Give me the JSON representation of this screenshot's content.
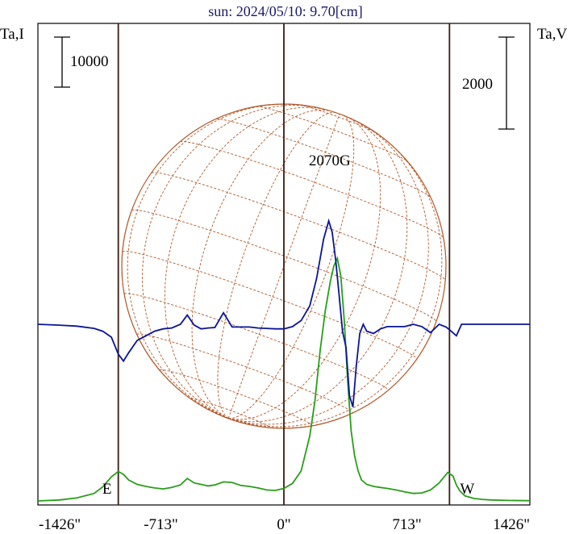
{
  "chart_data": {
    "type": "line",
    "title": "sun: 2024/05/10: 9.70[cm]",
    "left_axis_label": "Ta,I",
    "right_axis_label": "Ta,V",
    "x_tick_labels": [
      "-1426\"",
      "-713\"",
      "0\"",
      "713\"",
      "1426\""
    ],
    "x_ticks": [
      -1426,
      -713,
      0,
      713,
      1426
    ],
    "xlim": [
      -1426,
      1426
    ],
    "limb_lines_x": [
      -960,
      0,
      960
    ],
    "limb_labels": {
      "east": "E",
      "west": "W"
    },
    "scale_bar_left_label": "10000",
    "scale_bar_left_value": 10000,
    "scale_bar_right_label": "2000",
    "scale_bar_right_value": 2000,
    "annotation": {
      "text": "2070G",
      "x": 285
    },
    "colors": {
      "intensity": "#2a9d1a",
      "polarization": "#0a1496",
      "limb_lines": "#3a1a10",
      "solar_grid": "#b05a2a",
      "frame": "#000000",
      "title": "#1a1a6a"
    },
    "series": [
      {
        "id": "intensity",
        "axis": "left",
        "color": "#2a9d1a",
        "x": [
          -1426,
          -1300,
          -1200,
          -1100,
          -1050,
          -1000,
          -960,
          -930,
          -900,
          -850,
          -800,
          -750,
          -700,
          -650,
          -600,
          -560,
          -520,
          -480,
          -440,
          -400,
          -350,
          -300,
          -250,
          -200,
          -150,
          -100,
          -50,
          0,
          50,
          100,
          150,
          180,
          210,
          240,
          270,
          290,
          310,
          330,
          350,
          370,
          390,
          410,
          430,
          450,
          480,
          520,
          560,
          600,
          650,
          700,
          750,
          800,
          850,
          900,
          950,
          980,
          1000,
          1020,
          1050,
          1100,
          1150,
          1200,
          1300,
          1426
        ],
        "y": [
          0,
          200,
          600,
          1500,
          2800,
          4800,
          5900,
          5300,
          4200,
          3300,
          2900,
          2600,
          2400,
          2700,
          3200,
          4500,
          3600,
          3300,
          3000,
          3200,
          3800,
          3700,
          3100,
          2900,
          2600,
          2200,
          2100,
          2500,
          3500,
          6000,
          13000,
          20000,
          30000,
          38000,
          44000,
          47000,
          48500,
          45000,
          36000,
          24000,
          14000,
          9000,
          6000,
          4200,
          3300,
          2900,
          2700,
          2500,
          2200,
          1800,
          1500,
          1600,
          2200,
          3600,
          5700,
          5000,
          3200,
          2000,
          1000,
          500,
          300,
          200,
          100,
          50
        ]
      },
      {
        "id": "polarization",
        "axis": "right",
        "color": "#0a1496",
        "x": [
          -1426,
          -1300,
          -1200,
          -1100,
          -1050,
          -1000,
          -960,
          -930,
          -900,
          -850,
          -800,
          -750,
          -700,
          -650,
          -600,
          -560,
          -520,
          -480,
          -440,
          -400,
          -350,
          -300,
          -250,
          -200,
          -150,
          -100,
          -50,
          0,
          50,
          100,
          150,
          190,
          230,
          260,
          280,
          300,
          320,
          340,
          360,
          380,
          400,
          420,
          440,
          460,
          480,
          520,
          560,
          600,
          650,
          700,
          750,
          800,
          850,
          900,
          940,
          970,
          1000,
          1030,
          1080,
          1150,
          1250,
          1426
        ],
        "y": [
          0,
          -20,
          -40,
          -90,
          -150,
          -280,
          -650,
          -800,
          -620,
          -350,
          -250,
          -150,
          -100,
          -80,
          0,
          200,
          -20,
          -100,
          -80,
          -70,
          250,
          -60,
          -60,
          -60,
          -80,
          -90,
          -100,
          -100,
          -50,
          80,
          400,
          1000,
          1850,
          2250,
          2000,
          1400,
          650,
          -150,
          -500,
          -1550,
          -1800,
          -900,
          -200,
          0,
          -150,
          -200,
          -100,
          -50,
          -50,
          -50,
          0,
          -50,
          -180,
          0,
          -60,
          -150,
          -250,
          0,
          0,
          0,
          0,
          0
        ]
      }
    ]
  }
}
